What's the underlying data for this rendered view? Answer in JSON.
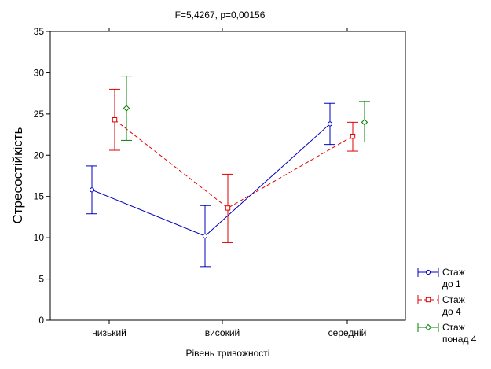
{
  "chart_data": {
    "type": "line",
    "title": "F=5,4267, p=0,00156",
    "xlabel": "Рівень тривожності",
    "ylabel": "Стресостійкість",
    "categories": [
      "низький",
      "високий",
      "середній"
    ],
    "ylim": [
      0,
      35
    ],
    "yticks": [
      "0",
      "5",
      "10",
      "15",
      "20",
      "25",
      "30",
      "35"
    ],
    "grid": false,
    "legend_position": "right",
    "series": [
      {
        "name_lines": [
          "Стаж",
          "до 1"
        ],
        "color": "#0000c0",
        "line": "solid",
        "marker": "circle",
        "connect": true,
        "values": [
          15.8,
          10.2,
          23.8
        ],
        "ci_low": [
          12.9,
          6.5,
          21.3
        ],
        "ci_high": [
          18.7,
          13.9,
          26.3
        ]
      },
      {
        "name_lines": [
          "Стаж",
          "до 4"
        ],
        "color": "#e00000",
        "line": "dashed",
        "marker": "square",
        "connect": true,
        "values": [
          24.3,
          13.6,
          22.3
        ],
        "ci_low": [
          20.6,
          9.4,
          20.5
        ],
        "ci_high": [
          28.0,
          17.7,
          24.0
        ]
      },
      {
        "name_lines": [
          "Стаж",
          "понад 4"
        ],
        "color": "#008000",
        "line": "none",
        "marker": "diamond",
        "connect": false,
        "values": [
          25.7,
          null,
          24.0
        ],
        "ci_low": [
          21.8,
          null,
          21.6
        ],
        "ci_high": [
          29.6,
          null,
          26.5
        ]
      }
    ]
  }
}
